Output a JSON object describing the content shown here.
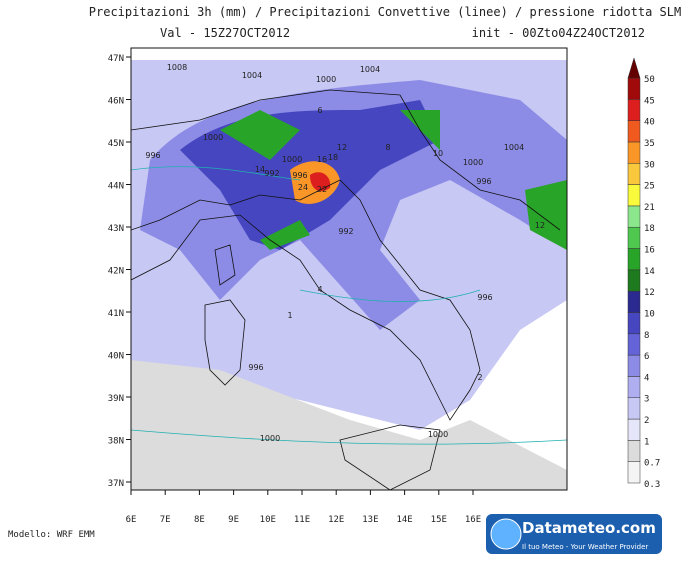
{
  "header": {
    "title": "Precipitazioni 3h (mm) / Precipitazioni Convettive (linee) / pressione ridotta SLM",
    "valid": "Val -  15Z27OCT2012",
    "init": "init - 00Zto04Z24OCT2012"
  },
  "map": {
    "lat_labels": [
      "47N",
      "46N",
      "45N",
      "44N",
      "43N",
      "42N",
      "41N",
      "40N",
      "39N",
      "38N",
      "37N"
    ],
    "lon_labels": [
      "6E",
      "7E",
      "8E",
      "9E",
      "10E",
      "11E",
      "12E",
      "13E",
      "14E",
      "15E",
      "16E"
    ],
    "contour_labels": [
      "1008",
      "1004",
      "1000",
      "1004",
      "1000",
      "996",
      "1000",
      "992",
      "996",
      "16",
      "18",
      "22",
      "24",
      "12",
      "14",
      "992",
      "1000",
      "996",
      "1004",
      "996",
      "996",
      "1000",
      "1000",
      "12",
      "10",
      "8",
      "6",
      "4",
      "2",
      "1"
    ]
  },
  "legend": {
    "levels": [
      0.3,
      0.7,
      1,
      2,
      3,
      4,
      6,
      8,
      10,
      12,
      14,
      16,
      18,
      21,
      25,
      30,
      35,
      40,
      45,
      50
    ],
    "colors": [
      "#f4f4f4",
      "#dcdcdc",
      "#e6e6fa",
      "#c8c8f5",
      "#aeaef0",
      "#8c8ce6",
      "#6464d8",
      "#4646c0",
      "#2a2a90",
      "#1e7a1e",
      "#28a428",
      "#50c850",
      "#8ce68c",
      "#fafa3c",
      "#fac83c",
      "#fa9628",
      "#f05a1e",
      "#dc1e1e",
      "#a00a0a",
      "#640000"
    ]
  },
  "footer": {
    "model": "Modello: WRF EMM",
    "logo": "Datameteo.com",
    "tagline": "Il tuo Meteo - Your Weather Provider"
  }
}
